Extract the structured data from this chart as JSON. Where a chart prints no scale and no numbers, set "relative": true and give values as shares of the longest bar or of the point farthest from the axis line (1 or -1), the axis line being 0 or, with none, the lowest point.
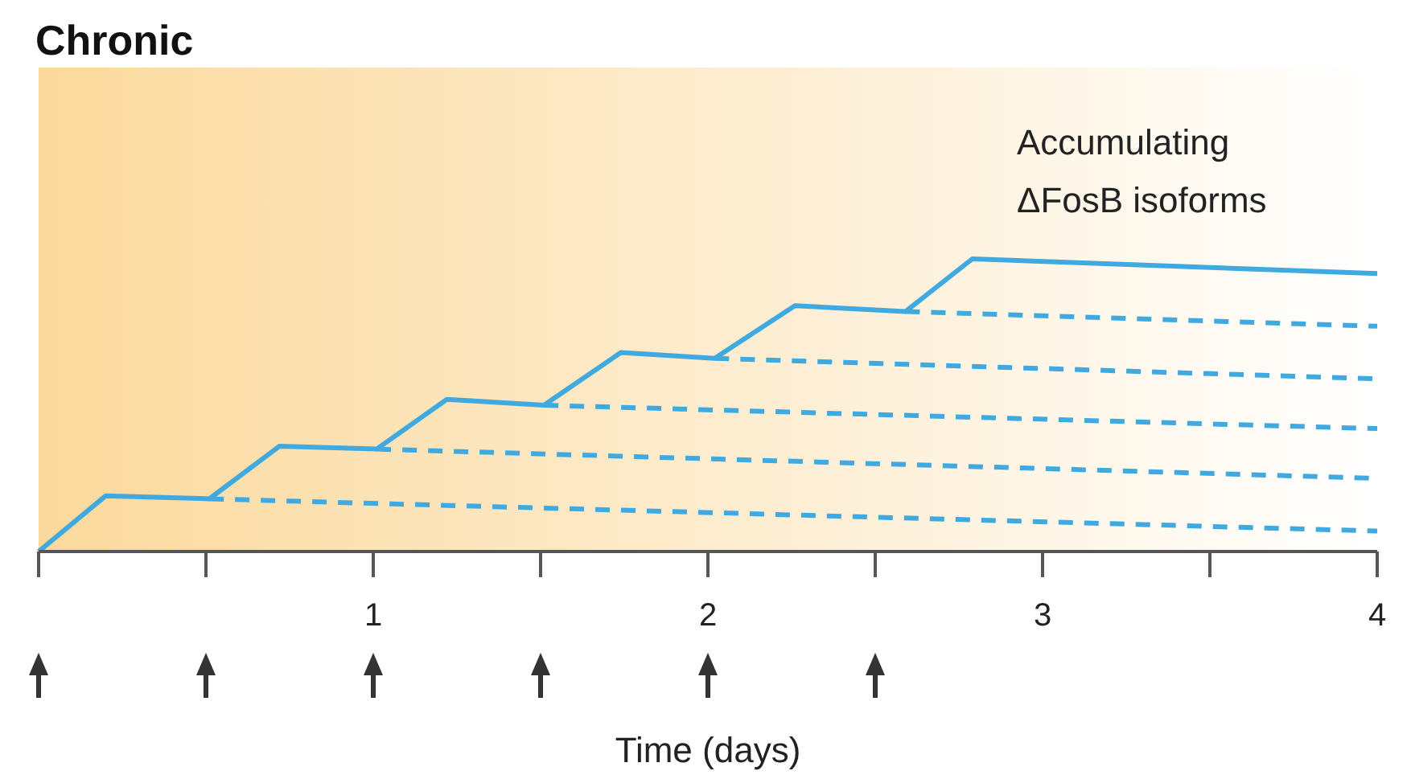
{
  "chart_data": {
    "type": "line",
    "title": "Chronic",
    "xlabel": "Time (days)",
    "relative": true,
    "xlim": [
      0,
      4
    ],
    "xticks": [
      {
        "value": 0,
        "label": null
      },
      {
        "value": 0.5,
        "label": null
      },
      1,
      {
        "value": 1.5,
        "label": null
      },
      2,
      {
        "value": 2.5,
        "label": null
      },
      3,
      {
        "value": 3.5,
        "label": null
      },
      4
    ],
    "marker": "none",
    "annotations": [
      "Accumulating ΔFosB isoforms"
    ],
    "series": [
      {
        "color": "#3fa9e0",
        "line_style": "solid",
        "x": [
          0,
          0.2,
          0.51,
          0.72,
          1.01,
          1.22,
          1.51,
          1.74,
          2.02,
          2.26,
          2.59,
          2.79,
          4
        ],
        "values": [
          0,
          0.19,
          0.18,
          0.36,
          0.35,
          0.52,
          0.5,
          0.68,
          0.66,
          0.84,
          0.82,
          1,
          0.95
        ]
      },
      {
        "color": "#3fa9e0",
        "line_style": "dashed",
        "x": [
          0.51,
          4
        ],
        "values": [
          0.18,
          0.07
        ]
      },
      {
        "color": "#3fa9e0",
        "line_style": "dashed",
        "x": [
          1.01,
          4
        ],
        "values": [
          0.35,
          0.25
        ]
      },
      {
        "color": "#3fa9e0",
        "line_style": "dashed",
        "x": [
          1.51,
          4
        ],
        "values": [
          0.5,
          0.42
        ]
      },
      {
        "color": "#3fa9e0",
        "line_style": "dashed",
        "x": [
          2.02,
          4
        ],
        "values": [
          0.66,
          0.59
        ]
      },
      {
        "color": "#3fa9e0",
        "line_style": "dashed",
        "x": [
          2.59,
          4
        ],
        "values": [
          0.82,
          0.77
        ]
      }
    ]
  }
}
